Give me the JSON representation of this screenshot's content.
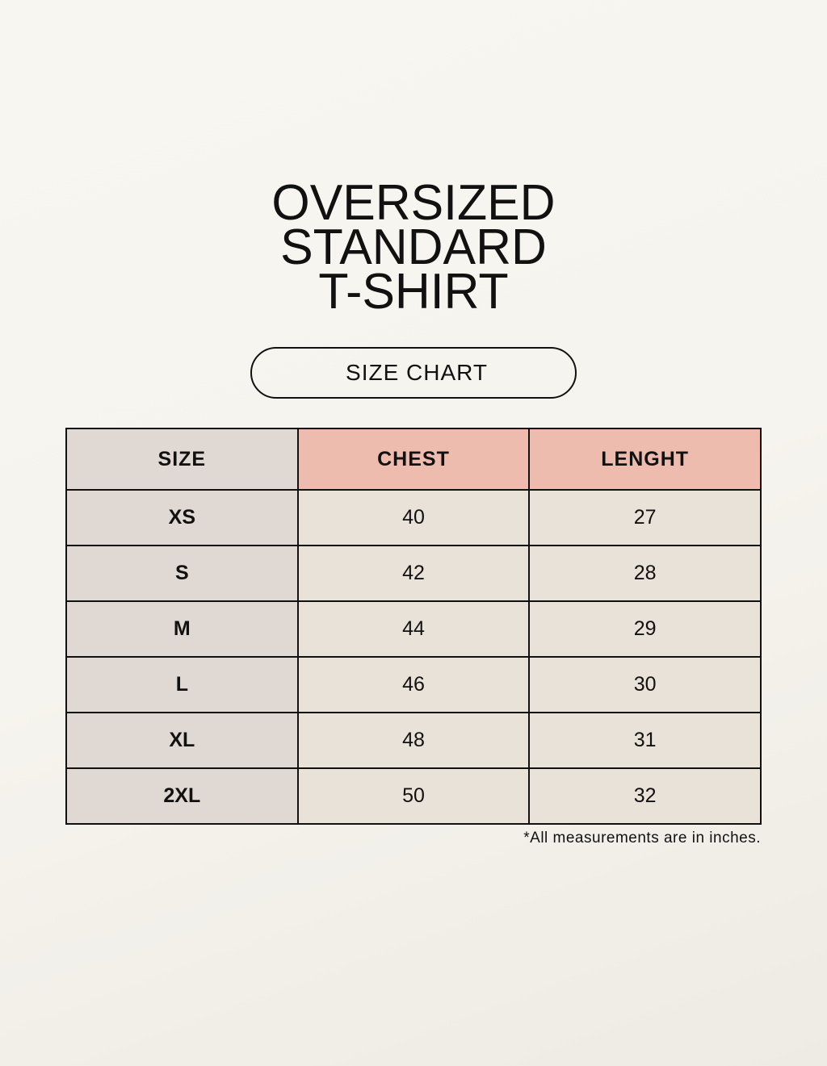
{
  "title": [
    "OVERSIZED",
    "STANDARD",
    "T-SHIRT"
  ],
  "badge": "SIZE CHART",
  "table": {
    "headers": [
      "SIZE",
      "CHEST",
      "LENGHT"
    ],
    "rows": [
      [
        "XS",
        "40",
        "27"
      ],
      [
        "S",
        "42",
        "28"
      ],
      [
        "M",
        "44",
        "29"
      ],
      [
        "L",
        "46",
        "30"
      ],
      [
        "XL",
        "48",
        "31"
      ],
      [
        "2XL",
        "50",
        "32"
      ]
    ]
  },
  "note": "*All measurements are in inches.",
  "colors": {
    "size_column": "#dfd8d3",
    "header_accent": "#edbcae",
    "body_cell": "#e9e2d8"
  }
}
